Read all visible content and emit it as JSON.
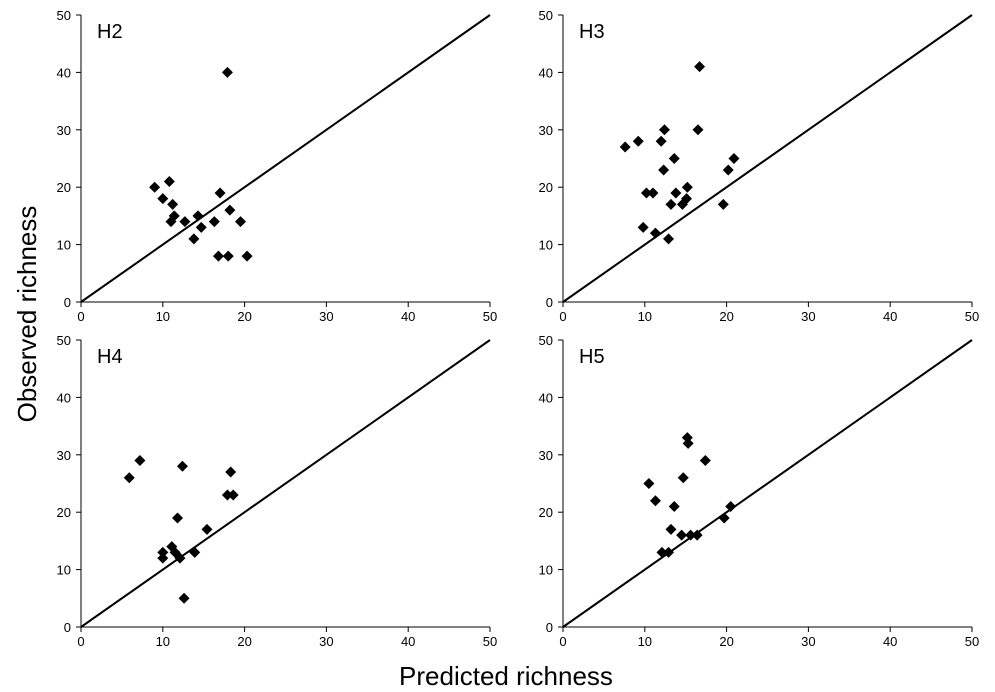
{
  "ylabel": "Observed richness",
  "xlabel": "Predicted richness",
  "chart_data": [
    {
      "type": "scatter",
      "title": "H2",
      "xlim": [
        0,
        50
      ],
      "ylim": [
        0,
        50
      ],
      "xticks": [
        "0",
        "10",
        "20",
        "30",
        "40",
        "50"
      ],
      "yticks": [
        "0",
        "10",
        "20",
        "30",
        "40",
        "50"
      ],
      "reference_line": "y = x",
      "points": [
        [
          9,
          20
        ],
        [
          10,
          18
        ],
        [
          10.8,
          21
        ],
        [
          11.2,
          17
        ],
        [
          11.0,
          14
        ],
        [
          11.4,
          15
        ],
        [
          12.7,
          14
        ],
        [
          13.8,
          11
        ],
        [
          14.3,
          15
        ],
        [
          14.7,
          13
        ],
        [
          16.3,
          14
        ],
        [
          16.8,
          8
        ],
        [
          17.0,
          19
        ],
        [
          17.9,
          40
        ],
        [
          18.0,
          8
        ],
        [
          18.2,
          16
        ],
        [
          19.5,
          14
        ],
        [
          20.3,
          8
        ]
      ]
    },
    {
      "type": "scatter",
      "title": "H3",
      "xlim": [
        0,
        50
      ],
      "ylim": [
        0,
        50
      ],
      "xticks": [
        "0",
        "10",
        "20",
        "30",
        "40",
        "50"
      ],
      "yticks": [
        "0",
        "10",
        "20",
        "30",
        "40",
        "50"
      ],
      "reference_line": "y = x",
      "points": [
        [
          7.6,
          27
        ],
        [
          9.2,
          28
        ],
        [
          9.8,
          13
        ],
        [
          10.2,
          19
        ],
        [
          11.0,
          19
        ],
        [
          11.3,
          12
        ],
        [
          12.0,
          28
        ],
        [
          12.3,
          23
        ],
        [
          12.4,
          30
        ],
        [
          12.9,
          11
        ],
        [
          13.2,
          17
        ],
        [
          13.6,
          25
        ],
        [
          13.8,
          19
        ],
        [
          14.6,
          17
        ],
        [
          15.1,
          18
        ],
        [
          15.2,
          20
        ],
        [
          16.5,
          30
        ],
        [
          16.7,
          41
        ],
        [
          19.6,
          17
        ],
        [
          20.2,
          23
        ],
        [
          20.9,
          25
        ]
      ]
    },
    {
      "type": "scatter",
      "title": "H4",
      "xlim": [
        0,
        50
      ],
      "ylim": [
        0,
        50
      ],
      "xticks": [
        "0",
        "10",
        "20",
        "30",
        "40",
        "50"
      ],
      "yticks": [
        "0",
        "10",
        "20",
        "30",
        "40",
        "50"
      ],
      "reference_line": "y = x",
      "points": [
        [
          5.9,
          26
        ],
        [
          7.2,
          29
        ],
        [
          10.0,
          13
        ],
        [
          10.0,
          12
        ],
        [
          11.1,
          14
        ],
        [
          11.5,
          13
        ],
        [
          11.8,
          19
        ],
        [
          12.1,
          12
        ],
        [
          12.4,
          28
        ],
        [
          12.6,
          5
        ],
        [
          13.9,
          13
        ],
        [
          15.4,
          17
        ],
        [
          17.9,
          23
        ],
        [
          18.3,
          27
        ],
        [
          18.6,
          23
        ]
      ]
    },
    {
      "type": "scatter",
      "title": "H5",
      "xlim": [
        0,
        50
      ],
      "ylim": [
        0,
        50
      ],
      "xticks": [
        "0",
        "10",
        "20",
        "30",
        "40",
        "50"
      ],
      "yticks": [
        "0",
        "10",
        "20",
        "30",
        "40",
        "50"
      ],
      "reference_line": "y = x",
      "points": [
        [
          10.5,
          25
        ],
        [
          11.3,
          22
        ],
        [
          12.1,
          13
        ],
        [
          12.9,
          13
        ],
        [
          13.2,
          17
        ],
        [
          13.6,
          21
        ],
        [
          14.5,
          16
        ],
        [
          14.7,
          26
        ],
        [
          15.2,
          33
        ],
        [
          15.3,
          32
        ],
        [
          15.6,
          16
        ],
        [
          16.4,
          16
        ],
        [
          17.4,
          29
        ],
        [
          19.7,
          19
        ],
        [
          20.5,
          21
        ]
      ]
    }
  ]
}
